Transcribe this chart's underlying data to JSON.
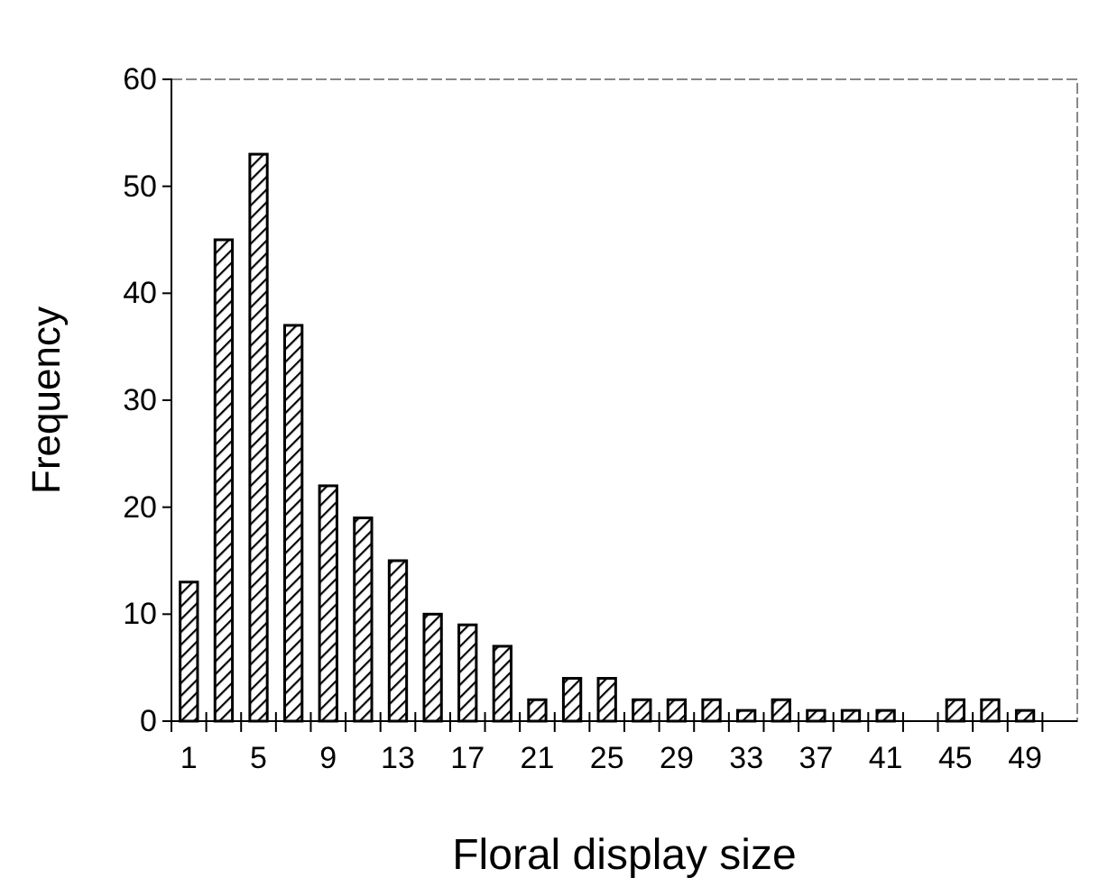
{
  "chart_data": {
    "type": "bar",
    "xlabel": "Floral display size",
    "ylabel": "Frequency",
    "categories": [
      "1",
      null,
      "5",
      null,
      "9",
      null,
      "13",
      null,
      "17",
      null,
      "21",
      null,
      "25",
      null,
      "29",
      null,
      "33",
      null,
      "37",
      null,
      "41",
      null,
      "45",
      null,
      "49"
    ],
    "values": [
      13,
      45,
      53,
      37,
      22,
      19,
      15,
      10,
      9,
      7,
      2,
      4,
      4,
      2,
      2,
      2,
      1,
      2,
      1,
      1,
      1,
      0,
      2,
      2,
      1
    ],
    "color": "#000000",
    "ylim": [
      0,
      60
    ],
    "yticks": [
      0,
      10,
      20,
      30,
      40,
      50,
      60
    ],
    "grid": false
  }
}
